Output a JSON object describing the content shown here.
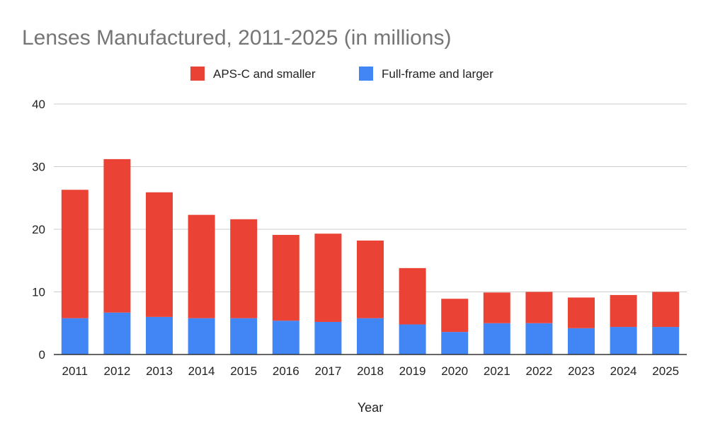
{
  "chart_data": {
    "type": "bar",
    "stacked": true,
    "title": "Lenses Manufactured, 2011-2025 (in millions)",
    "xlabel": "Year",
    "ylabel": "",
    "ylim": [
      0,
      40
    ],
    "yticks": [
      "0",
      "10",
      "20",
      "30",
      "40"
    ],
    "grid": true,
    "legend_position": "top",
    "categories": [
      "2011",
      "2012",
      "2013",
      "2014",
      "2015",
      "2016",
      "2017",
      "2018",
      "2019",
      "2020",
      "2021",
      "2022",
      "2023",
      "2024",
      "2025"
    ],
    "series": [
      {
        "name": "Full-frame and larger",
        "color": "#4285f4",
        "values": [
          5.8,
          6.7,
          6.0,
          5.8,
          5.8,
          5.4,
          5.2,
          5.8,
          4.8,
          3.6,
          5.0,
          5.0,
          4.2,
          4.4,
          4.4
        ]
      },
      {
        "name": "APS-C and smaller",
        "color": "#ea4335",
        "values": [
          20.5,
          24.5,
          19.9,
          16.5,
          15.8,
          13.7,
          14.1,
          12.4,
          9.0,
          5.3,
          4.9,
          5.0,
          4.9,
          5.1,
          5.6
        ]
      }
    ],
    "legend_order": [
      1,
      0
    ],
    "colors": {
      "title": "#757575",
      "text": "#222222",
      "grid": "#cccccc",
      "axis": "#333333"
    }
  }
}
